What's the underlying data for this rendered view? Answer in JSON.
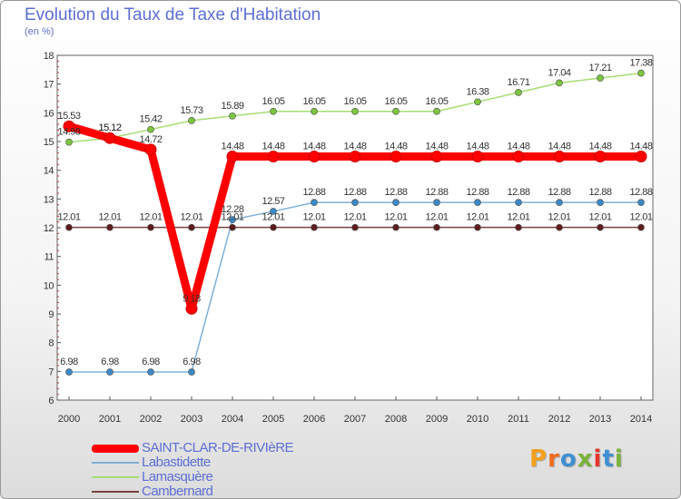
{
  "title": "Evolution du Taux de Taxe d'Habitation",
  "subtitle": "(en %)",
  "logo": {
    "text": "Proxiti",
    "colors": [
      "#f2a01e",
      "#ee6d1e",
      "#3f8fd2",
      "#7ab33c",
      "#e5352b",
      "#3f8fd2",
      "#7ab33c"
    ]
  },
  "chart_data": {
    "type": "line",
    "x": [
      2000,
      2001,
      2002,
      2003,
      2004,
      2005,
      2006,
      2007,
      2008,
      2009,
      2010,
      2011,
      2012,
      2013,
      2014
    ],
    "ylim": [
      6,
      18
    ],
    "yticks": [
      6,
      7,
      8,
      9,
      10,
      11,
      12,
      13,
      14,
      15,
      16,
      17,
      18
    ],
    "grid": false,
    "legend_position": "bottom-left",
    "series": [
      {
        "name": "SAINT-CLAR-DE-RIVIèRE",
        "values": [
          15.53,
          15.12,
          14.72,
          9.18,
          14.48,
          14.48,
          14.48,
          14.48,
          14.48,
          14.48,
          14.48,
          14.48,
          14.48,
          14.48,
          14.48
        ],
        "labels": [
          "15.53",
          "15.12",
          "14.72",
          "9.18",
          "14.48",
          "14.48",
          "14.48",
          "14.48",
          "14.48",
          "14.48",
          "14.48",
          "14.48",
          "14.48",
          "14.48",
          "14.48"
        ],
        "color": "#ff0000",
        "marker_fill": "#ff0000",
        "bold": true
      },
      {
        "name": "Labastidette",
        "values": [
          6.98,
          6.98,
          6.98,
          6.98,
          12.28,
          12.57,
          12.88,
          12.88,
          12.88,
          12.88,
          12.88,
          12.88,
          12.88,
          12.88,
          12.88
        ],
        "labels": [
          "6.98",
          "6.98",
          "6.98",
          "6.98",
          "12.28",
          "12.57",
          "12.88",
          "12.88",
          "12.88",
          "12.88",
          "12.88",
          "12.88",
          "12.88",
          "12.88",
          "12.88"
        ],
        "color": "#7fb0d8",
        "marker_fill": "#3b8ac8"
      },
      {
        "name": "Lamasquère",
        "values": [
          14.98,
          15.12,
          15.42,
          15.73,
          15.89,
          16.05,
          16.05,
          16.05,
          16.05,
          16.05,
          16.38,
          16.71,
          17.04,
          17.21,
          17.38
        ],
        "labels": [
          "14.98",
          "15.12",
          "15.42",
          "15.73",
          "15.89",
          "16.05",
          "16.05",
          "16.05",
          "16.05",
          "16.05",
          "16.38",
          "16.71",
          "17.04",
          "17.21",
          "17.38"
        ],
        "color": "#a6dd72",
        "marker_fill": "#7cc73c"
      },
      {
        "name": "Cambernard",
        "values": [
          12.01,
          12.01,
          12.01,
          12.01,
          12.01,
          12.01,
          12.01,
          12.01,
          12.01,
          12.01,
          12.01,
          12.01,
          12.01,
          12.01,
          12.01
        ],
        "labels": [
          "12.01",
          "12.01",
          "12.01",
          "12.01",
          "12.01",
          "12.01",
          "12.01",
          "12.01",
          "12.01",
          "12.01",
          "12.01",
          "12.01",
          "12.01",
          "12.01",
          "12.01"
        ],
        "color": "#7a4040",
        "marker_fill": "#5e1c1c"
      }
    ]
  }
}
